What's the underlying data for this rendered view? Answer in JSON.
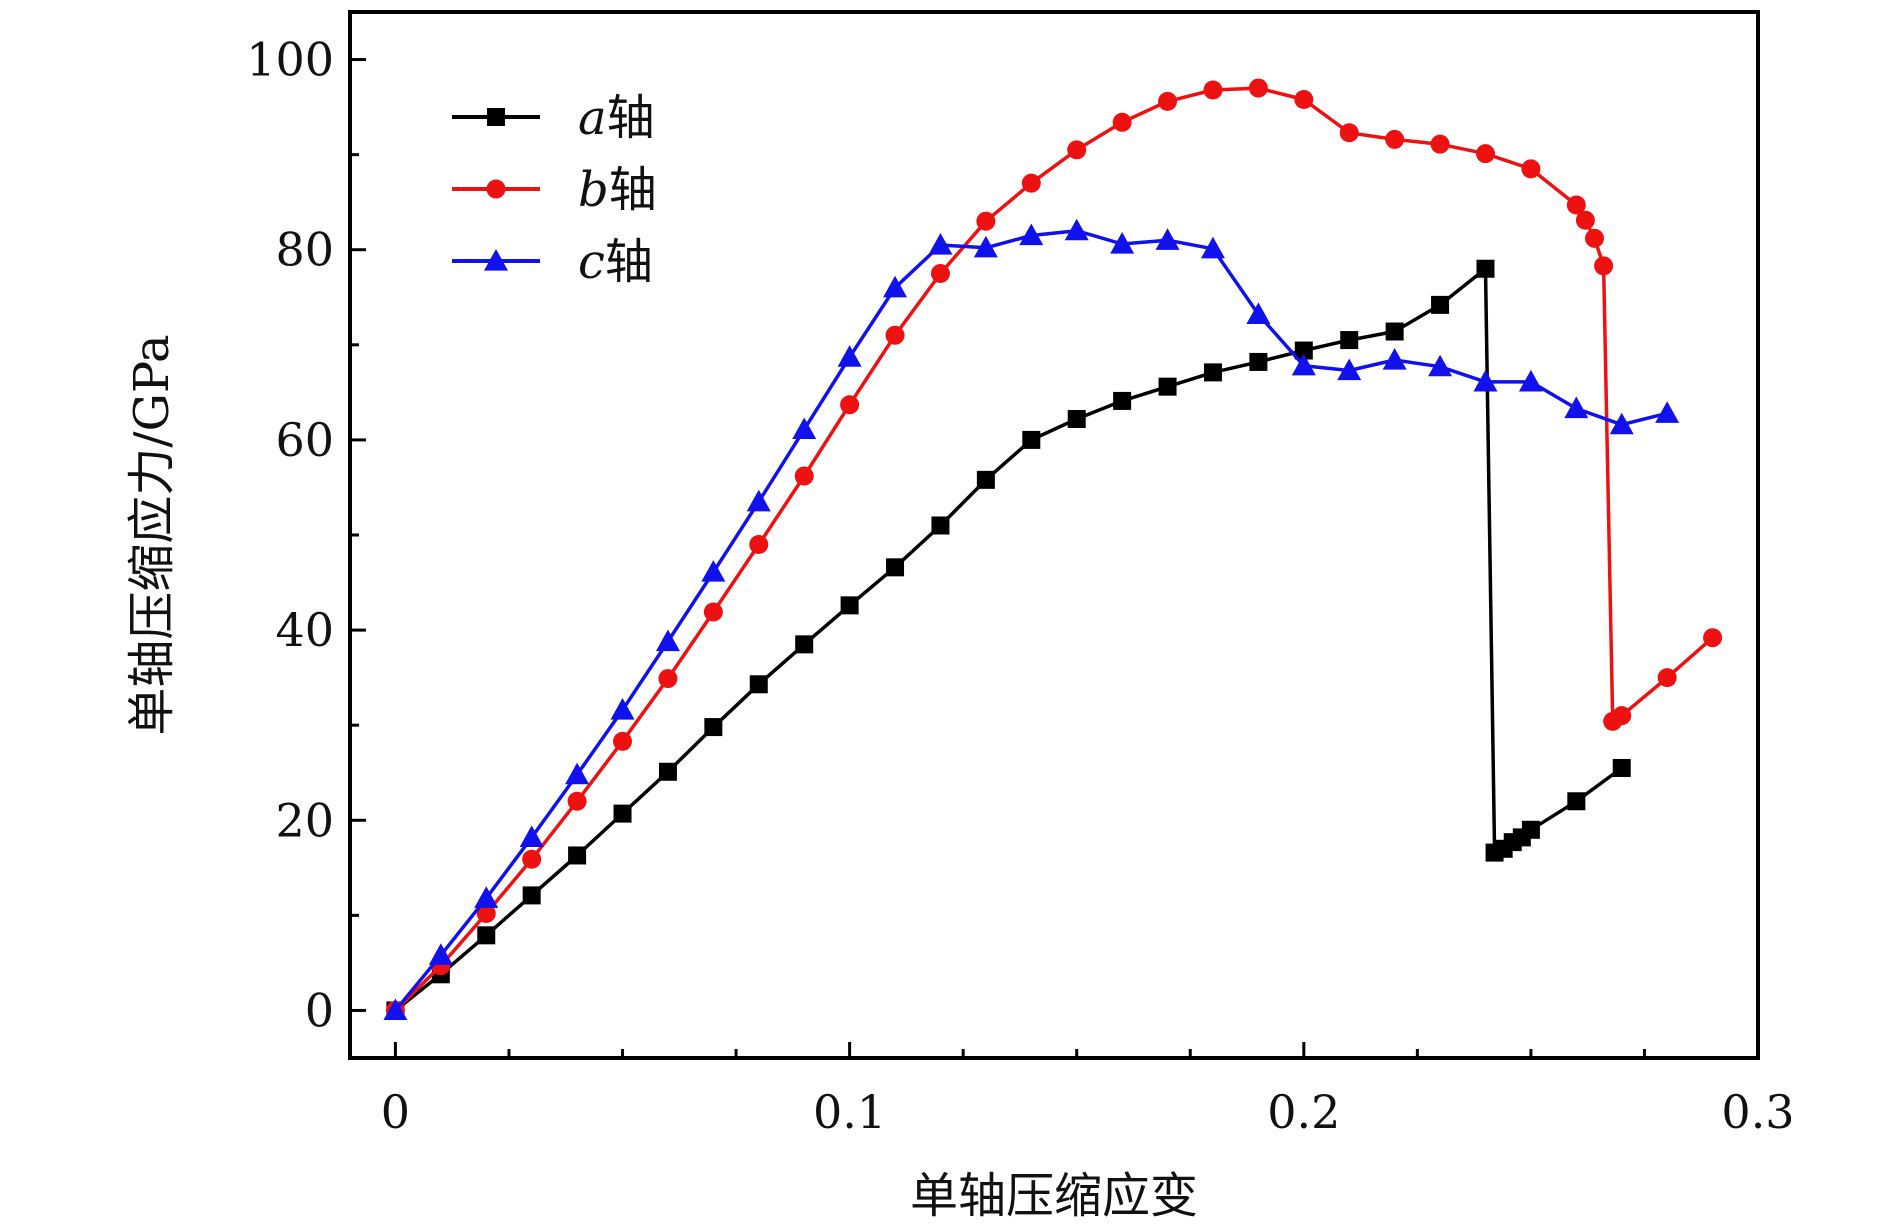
{
  "chart_data": {
    "type": "line",
    "xlabel": "单轴压缩应变",
    "ylabel": "单轴压缩应力/GPa",
    "xlim": [
      -0.01,
      0.3
    ],
    "ylim": [
      -5,
      105
    ],
    "x_ticks": [
      0,
      0.1,
      0.2,
      0.3
    ],
    "x_tick_labels": [
      "0",
      "0.1",
      "0.2",
      "0.3"
    ],
    "y_ticks": [
      0,
      20,
      40,
      60,
      80,
      100
    ],
    "y_tick_labels": [
      "0",
      "20",
      "40",
      "60",
      "80",
      "100"
    ],
    "legend_position": "top-left",
    "grid": false,
    "series": [
      {
        "name": "a轴",
        "name_italic": "a",
        "name_rest": "轴",
        "color": "#000000",
        "marker": "square",
        "points": [
          [
            0,
            0
          ],
          [
            0.01,
            3.8
          ],
          [
            0.02,
            7.9
          ],
          [
            0.03,
            12.1
          ],
          [
            0.04,
            16.3
          ],
          [
            0.05,
            20.7
          ],
          [
            0.06,
            25.1
          ],
          [
            0.07,
            29.8
          ],
          [
            0.08,
            34.3
          ],
          [
            0.09,
            38.5
          ],
          [
            0.1,
            42.6
          ],
          [
            0.11,
            46.6
          ],
          [
            0.12,
            51.0
          ],
          [
            0.13,
            55.8
          ],
          [
            0.14,
            60.0
          ],
          [
            0.15,
            62.2
          ],
          [
            0.16,
            64.1
          ],
          [
            0.17,
            65.6
          ],
          [
            0.18,
            67.1
          ],
          [
            0.19,
            68.2
          ],
          [
            0.2,
            69.4
          ],
          [
            0.21,
            70.5
          ],
          [
            0.22,
            71.4
          ],
          [
            0.23,
            74.2
          ],
          [
            0.24,
            78.0
          ],
          [
            0.242,
            16.6
          ],
          [
            0.244,
            17.0
          ],
          [
            0.246,
            17.7
          ],
          [
            0.248,
            18.2
          ],
          [
            0.25,
            19.0
          ],
          [
            0.26,
            22.0
          ],
          [
            0.27,
            25.5
          ]
        ]
      },
      {
        "name": "b轴",
        "name_italic": "b",
        "name_rest": "轴",
        "color": "#ee1111",
        "marker": "circle",
        "points": [
          [
            0,
            0
          ],
          [
            0.01,
            4.7
          ],
          [
            0.02,
            10.2
          ],
          [
            0.03,
            15.9
          ],
          [
            0.04,
            22.0
          ],
          [
            0.05,
            28.3
          ],
          [
            0.06,
            34.9
          ],
          [
            0.07,
            41.9
          ],
          [
            0.08,
            49.0
          ],
          [
            0.09,
            56.2
          ],
          [
            0.1,
            63.7
          ],
          [
            0.11,
            71.0
          ],
          [
            0.12,
            77.5
          ],
          [
            0.13,
            83.0
          ],
          [
            0.14,
            87.0
          ],
          [
            0.15,
            90.5
          ],
          [
            0.16,
            93.4
          ],
          [
            0.17,
            95.6
          ],
          [
            0.18,
            96.8
          ],
          [
            0.19,
            97.0
          ],
          [
            0.2,
            95.8
          ],
          [
            0.21,
            92.3
          ],
          [
            0.22,
            91.6
          ],
          [
            0.23,
            91.1
          ],
          [
            0.24,
            90.1
          ],
          [
            0.25,
            88.5
          ],
          [
            0.26,
            84.7
          ],
          [
            0.262,
            83.1
          ],
          [
            0.264,
            81.2
          ],
          [
            0.266,
            78.3
          ],
          [
            0.268,
            30.4
          ],
          [
            0.27,
            31.0
          ],
          [
            0.28,
            35.0
          ],
          [
            0.29,
            39.2
          ]
        ]
      },
      {
        "name": "c轴",
        "name_italic": "c",
        "name_rest": "轴",
        "color": "#1111ee",
        "marker": "triangle",
        "points": [
          [
            0,
            0
          ],
          [
            0.01,
            5.8
          ],
          [
            0.02,
            11.8
          ],
          [
            0.03,
            18.2
          ],
          [
            0.04,
            24.8
          ],
          [
            0.05,
            31.6
          ],
          [
            0.06,
            38.8
          ],
          [
            0.07,
            46.1
          ],
          [
            0.08,
            53.5
          ],
          [
            0.09,
            61.1
          ],
          [
            0.1,
            68.7
          ],
          [
            0.11,
            76.0
          ],
          [
            0.12,
            80.5
          ],
          [
            0.13,
            80.2
          ],
          [
            0.14,
            81.5
          ],
          [
            0.15,
            82.0
          ],
          [
            0.16,
            80.6
          ],
          [
            0.17,
            81.0
          ],
          [
            0.18,
            80.1
          ],
          [
            0.19,
            73.2
          ],
          [
            0.2,
            67.8
          ],
          [
            0.21,
            67.3
          ],
          [
            0.22,
            68.4
          ],
          [
            0.23,
            67.7
          ],
          [
            0.24,
            66.1
          ],
          [
            0.25,
            66.1
          ],
          [
            0.26,
            63.3
          ],
          [
            0.27,
            61.6
          ],
          [
            0.28,
            62.8
          ]
        ]
      }
    ]
  }
}
